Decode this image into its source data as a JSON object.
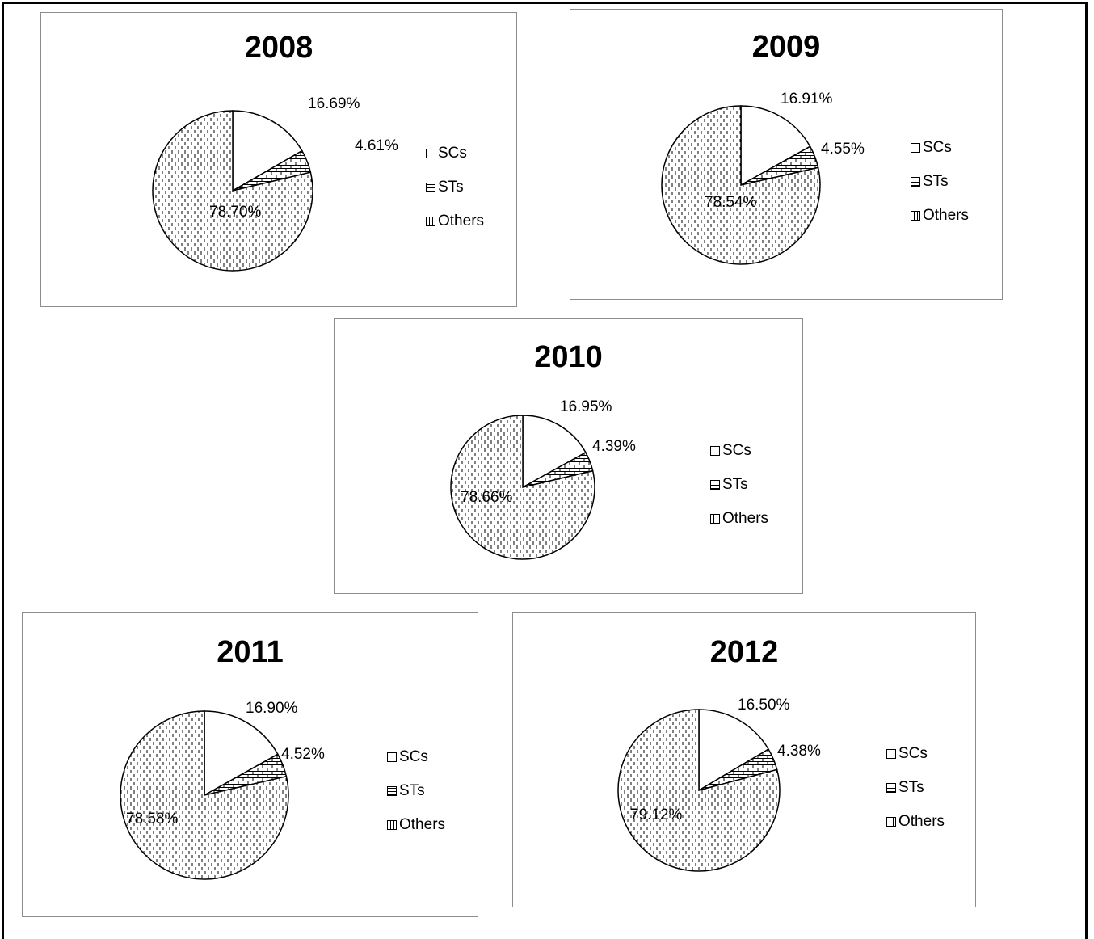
{
  "colors": {
    "border": "#8c8c8c",
    "slice_stroke": "#000000",
    "background": "#ffffff"
  },
  "chart_data": [
    {
      "type": "pie",
      "title": "2008",
      "categories": [
        "SCs",
        "STs",
        "Others"
      ],
      "values": [
        16.69,
        4.61,
        78.7
      ],
      "labels": [
        "16.69%",
        "4.61%",
        "78.70%"
      ],
      "legend": [
        "SCs",
        "STs",
        "Others"
      ],
      "legend_position": "right"
    },
    {
      "type": "pie",
      "title": "2009",
      "categories": [
        "SCs",
        "STs",
        "Others"
      ],
      "values": [
        16.91,
        4.55,
        78.54
      ],
      "labels": [
        "16.91%",
        "4.55%",
        "78.54%"
      ],
      "legend": [
        "SCs",
        "STs",
        "Others"
      ],
      "legend_position": "right"
    },
    {
      "type": "pie",
      "title": "2010",
      "categories": [
        "SCs",
        "STs",
        "Others"
      ],
      "values": [
        16.95,
        4.39,
        78.66
      ],
      "labels": [
        "16.95%",
        "4.39%",
        "78.66%"
      ],
      "legend": [
        "SCs",
        "STs",
        "Others"
      ],
      "legend_position": "right"
    },
    {
      "type": "pie",
      "title": "2011",
      "categories": [
        "SCs",
        "STs",
        "Others"
      ],
      "values": [
        16.9,
        4.52,
        78.58
      ],
      "labels": [
        "16.90%",
        "4.52%",
        "78.58%"
      ],
      "legend": [
        "SCs",
        "STs",
        "Others"
      ],
      "legend_position": "right"
    },
    {
      "type": "pie",
      "title": "2012",
      "categories": [
        "SCs",
        "STs",
        "Others"
      ],
      "values": [
        16.5,
        4.38,
        79.12
      ],
      "labels": [
        "16.50%",
        "4.38%",
        "79.12%"
      ],
      "legend": [
        "SCs",
        "STs",
        "Others"
      ],
      "legend_position": "right"
    }
  ]
}
